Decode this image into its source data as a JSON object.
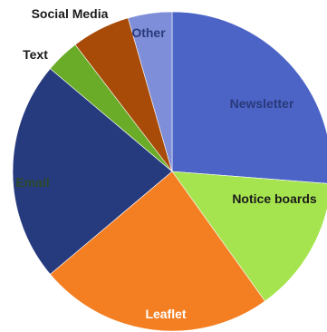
{
  "chart_data": {
    "type": "pie",
    "title": "",
    "legend": "none",
    "slices": [
      {
        "label": "Newsletter",
        "value": 26.5,
        "color": "#4b64c6",
        "label_color": "#2a3a7a"
      },
      {
        "label": "Notice boards",
        "value": 14.0,
        "color": "#a6e44f",
        "label_color": "#1a1a1a"
      },
      {
        "label": "Leaflet",
        "value": 24.0,
        "color": "#f47f23",
        "label_color": "#ffffff"
      },
      {
        "label": "Email",
        "value": 22.5,
        "color": "#263a7e",
        "label_color": "#2f4b2a"
      },
      {
        "label": "Text",
        "value": 3.5,
        "color": "#6aab28",
        "label_color": "#1a1a1a"
      },
      {
        "label": "Social Media",
        "value": 6.0,
        "color": "#a84b08",
        "label_color": "#1a1a1a"
      },
      {
        "label": "Other",
        "value": 4.5,
        "color": "#7f8ed8",
        "label_color": "#2a3a7a"
      }
    ]
  }
}
